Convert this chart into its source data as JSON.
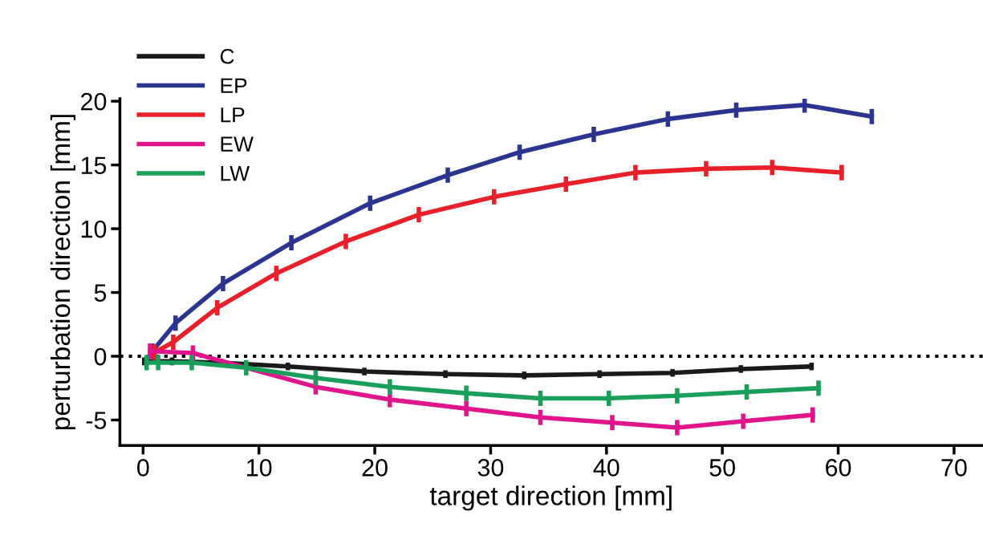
{
  "chart_data": {
    "type": "line",
    "xlabel": "target direction [mm]",
    "ylabel": "perturbation direction [mm]",
    "xlim": [
      -2,
      72.5
    ],
    "ylim": [
      -7,
      20.2
    ],
    "xticks": [
      0,
      10,
      20,
      30,
      40,
      50,
      60,
      70
    ],
    "yticks": [
      -5,
      0,
      5,
      10,
      15,
      20
    ],
    "grid": false,
    "legend": "top left",
    "marker": "none",
    "line_style": "solid",
    "ref_lines": [
      {
        "axis": "y",
        "value": 0,
        "color": "#000000",
        "line_style": "dotted"
      }
    ],
    "series": [
      {
        "name": "C",
        "color": "#1a1a1a",
        "x": [
          0.1,
          2.5,
          6.7,
          12.5,
          19.1,
          26.1,
          32.9,
          39.4,
          45.7,
          51.6,
          57.7
        ],
        "values": [
          -0.4,
          -0.4,
          -0.5,
          -0.8,
          -1.2,
          -1.4,
          -1.5,
          -1.4,
          -1.3,
          -1.0,
          -0.8
        ],
        "errors": [
          0.3,
          0.3,
          0.3,
          0.3,
          0.3,
          0.3,
          0.3,
          0.3,
          0.3,
          0.3,
          0.3
        ]
      },
      {
        "name": "EP",
        "color": "#2b3590",
        "x": [
          0.8,
          2.8,
          6.9,
          12.8,
          19.6,
          26.3,
          32.5,
          38.9,
          45.3,
          51.2,
          57.1,
          62.9
        ],
        "values": [
          0.4,
          2.6,
          5.7,
          8.9,
          12.0,
          14.2,
          16.0,
          17.4,
          18.6,
          19.3,
          19.7,
          18.8
        ],
        "errors": [
          0.6,
          0.6,
          0.6,
          0.6,
          0.6,
          0.6,
          0.6,
          0.6,
          0.6,
          0.6,
          0.6,
          0.6
        ]
      },
      {
        "name": "LP",
        "color": "#e8202a",
        "x": [
          1.0,
          2.6,
          6.4,
          11.5,
          17.5,
          23.8,
          30.3,
          36.5,
          42.5,
          48.6,
          54.3,
          60.3
        ],
        "values": [
          0.3,
          1.1,
          3.8,
          6.5,
          9.0,
          11.1,
          12.5,
          13.5,
          14.4,
          14.7,
          14.8,
          14.4
        ],
        "errors": [
          0.6,
          0.6,
          0.6,
          0.6,
          0.6,
          0.6,
          0.6,
          0.6,
          0.6,
          0.6,
          0.6,
          0.6
        ]
      },
      {
        "name": "EW",
        "color": "#e0158c",
        "x": [
          0.6,
          4.3,
          14.9,
          21.3,
          27.9,
          34.3,
          40.5,
          46.1,
          51.8,
          57.8
        ],
        "values": [
          0.4,
          0.25,
          -2.4,
          -3.4,
          -4.1,
          -4.8,
          -5.2,
          -5.6,
          -5.1,
          -4.6
        ],
        "errors": [
          0.6,
          0.6,
          0.6,
          0.6,
          0.6,
          0.6,
          0.6,
          0.6,
          0.6,
          0.6
        ]
      },
      {
        "name": "LW",
        "color": "#1a9e5a",
        "x": [
          0.3,
          1.3,
          4.2,
          8.9,
          14.9,
          21.3,
          27.9,
          34.3,
          40.2,
          46.1,
          52.1,
          58.3
        ],
        "values": [
          -0.5,
          -0.5,
          -0.5,
          -0.9,
          -1.7,
          -2.4,
          -2.9,
          -3.3,
          -3.3,
          -3.1,
          -2.8,
          -2.5
        ],
        "errors": [
          0.6,
          0.6,
          0.6,
          0.6,
          0.6,
          0.6,
          0.6,
          0.6,
          0.6,
          0.6,
          0.6,
          0.6
        ]
      }
    ]
  }
}
